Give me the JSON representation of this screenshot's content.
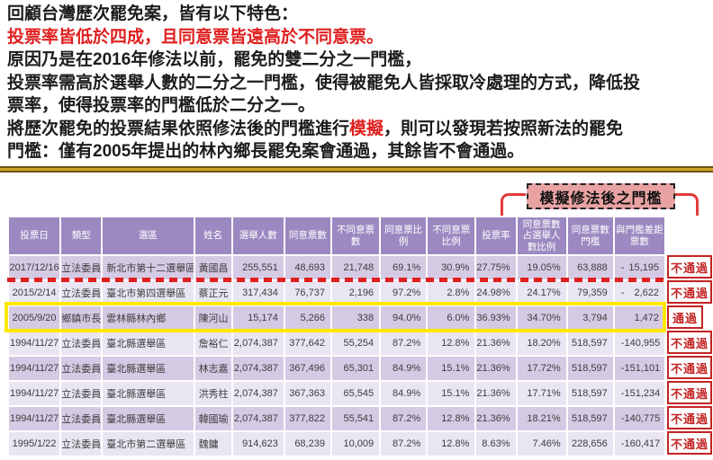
{
  "intro": {
    "lines": [
      {
        "segments": [
          {
            "text": "回顧台灣歷次罷免案，皆有以下特色：",
            "red": false
          }
        ]
      },
      {
        "segments": [
          {
            "text": "投票率皆低於四成，且同意票皆遠高於不同意票。",
            "red": true
          }
        ]
      },
      {
        "segments": [
          {
            "text": "原因乃是在2016年修法以前，罷免的雙二分之一門檻，",
            "red": false
          }
        ]
      },
      {
        "segments": [
          {
            "text": "投票率需高於選舉人數的二分之一門檻，使得被罷免人皆採取冷處理的方式，降低投",
            "red": false
          }
        ]
      },
      {
        "segments": [
          {
            "text": "票率，使得投票率的門檻低於二分之一。",
            "red": false
          }
        ]
      },
      {
        "segments": [
          {
            "text": "將歷次罷免的投票結果依照修法後的門檻進行",
            "red": false
          },
          {
            "text": "模擬",
            "red": true
          },
          {
            "text": "，則可以發現若按照新法的罷免",
            "red": false
          }
        ]
      },
      {
        "segments": [
          {
            "text": "門檻：僅有2005年提出的林內鄉長罷免案會通過，其餘皆不會通過。",
            "red": false
          }
        ]
      }
    ]
  },
  "threshold_label": "模擬修法後之門檻",
  "table": {
    "headers": [
      "投票日",
      "類型",
      "選區",
      "姓名",
      "選舉人數",
      "同意票數",
      "不同意票數",
      "同意票比例",
      "不同意票比例",
      "投票率",
      "同意票數占選舉人數比例",
      "同意票數門檻",
      "與門檻差距票數"
    ],
    "rows": [
      {
        "date": "2017/12/16",
        "type": "立法委員",
        "district": "新北市第十二選舉區",
        "name": "黃國昌",
        "electors": "255,551",
        "agree": "48,693",
        "disagree": "21,748",
        "agree_pct": "69.1%",
        "disagree_pct": "30.9%",
        "turnout": "27.75%",
        "agree_elector_share": "19.05%",
        "threshold": "63,888",
        "gap": "15,195",
        "gap_negative": true,
        "result": "不通過",
        "pass": false
      },
      {
        "date": "2015/2/14",
        "type": "立法委員",
        "district": "臺北市第四選舉區",
        "name": "蔡正元",
        "electors": "317,434",
        "agree": "76,737",
        "disagree": "2,196",
        "agree_pct": "97.2%",
        "disagree_pct": "2.8%",
        "turnout": "24.98%",
        "agree_elector_share": "24.17%",
        "threshold": "79,359",
        "gap": "2,622",
        "gap_negative": true,
        "result": "不通過",
        "pass": false
      },
      {
        "date": "2005/9/20",
        "type": "鄉鎮市長",
        "district": "雲林縣林內鄉",
        "name": "陳河山",
        "electors": "15,174",
        "agree": "5,266",
        "disagree": "338",
        "agree_pct": "94.0%",
        "disagree_pct": "6.0%",
        "turnout": "36.93%",
        "agree_elector_share": "34.70%",
        "threshold": "3,794",
        "gap": "1,472",
        "gap_negative": false,
        "result": "通過",
        "pass": true
      },
      {
        "date": "1994/11/27",
        "type": "立法委員",
        "district": "臺北縣選舉區",
        "name": "詹裕仁",
        "electors": "2,074,387",
        "agree": "377,642",
        "disagree": "55,254",
        "agree_pct": "87.2%",
        "disagree_pct": "12.8%",
        "turnout": "21.36%",
        "agree_elector_share": "18.20%",
        "threshold": "518,597",
        "gap": "140,955",
        "gap_negative": true,
        "result": "不通過",
        "pass": false
      },
      {
        "date": "1994/11/27",
        "type": "立法委員",
        "district": "臺北縣選舉區",
        "name": "林志嘉",
        "electors": "2,074,387",
        "agree": "367,496",
        "disagree": "65,301",
        "agree_pct": "84.9%",
        "disagree_pct": "15.1%",
        "turnout": "21.36%",
        "agree_elector_share": "17.72%",
        "threshold": "518,597",
        "gap": "151,101",
        "gap_negative": true,
        "result": "不通過",
        "pass": false
      },
      {
        "date": "1994/11/27",
        "type": "立法委員",
        "district": "臺北縣選舉區",
        "name": "洪秀柱",
        "electors": "2,074,387",
        "agree": "367,363",
        "disagree": "65,545",
        "agree_pct": "84.9%",
        "disagree_pct": "15.1%",
        "turnout": "21.36%",
        "agree_elector_share": "17.71%",
        "threshold": "518,597",
        "gap": "151,234",
        "gap_negative": true,
        "result": "不通過",
        "pass": false
      },
      {
        "date": "1994/11/27",
        "type": "立法委員",
        "district": "臺北縣選舉區",
        "name": "韓國瑜",
        "electors": "2,074,387",
        "agree": "377,822",
        "disagree": "55,541",
        "agree_pct": "87.2%",
        "disagree_pct": "12.8%",
        "turnout": "21.36%",
        "agree_elector_share": "18.21%",
        "threshold": "518,597",
        "gap": "140,775",
        "gap_negative": true,
        "result": "不通過",
        "pass": false
      },
      {
        "date": "1995/1/22",
        "type": "立法委員",
        "district": "臺北市第二選舉區",
        "name": "魏鏞",
        "electors": "914,623",
        "agree": "68,239",
        "disagree": "10,009",
        "agree_pct": "87.2%",
        "disagree_pct": "12.8%",
        "turnout": "8.63%",
        "agree_elector_share": "7.46%",
        "threshold": "228,656",
        "gap": "160,417",
        "gap_negative": true,
        "result": "不通過",
        "pass": false
      }
    ]
  },
  "colors": {
    "accent_red": "#e01f1f",
    "header_purple": "#9c89c1",
    "row_odd": "#d5cae4",
    "row_even": "#eae5f2",
    "stamp_red": "#c32323",
    "label_pink": "#e9a2a2",
    "highlight_yellow": "#ffe800",
    "bracket_red": "#e23b3b"
  }
}
